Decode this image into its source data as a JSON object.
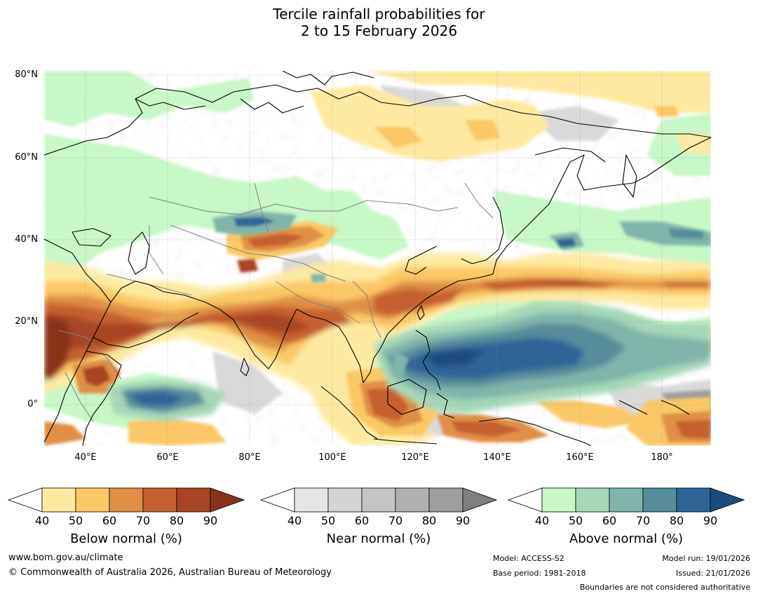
{
  "title_line1": "Tercile rainfall probabilities for",
  "title_line2": "2 to 15 February 2026",
  "lat_labels": [
    "80°N",
    "60°N",
    "40°N",
    "20°N",
    "0°"
  ],
  "lon_labels": [
    "40°E",
    "60°E",
    "80°E",
    "100°E",
    "120°E",
    "140°E",
    "160°E",
    "180°"
  ],
  "colorbars": [
    {
      "title": "Below normal (%)",
      "ticks": [
        "40",
        "50",
        "60",
        "70",
        "80",
        "90"
      ],
      "colors": [
        "#fdeaa0",
        "#fcc766",
        "#e08f45",
        "#c6602f",
        "#a84523",
        "#8a3219"
      ]
    },
    {
      "title": "Near normal (%)",
      "ticks": [
        "40",
        "50",
        "60",
        "70",
        "80",
        "90"
      ],
      "colors": [
        "#e5e5e5",
        "#d4d4d4",
        "#c4c4c4",
        "#b0b0b0",
        "#9e9e9e",
        "#7f7f7f"
      ]
    },
    {
      "title": "Above normal (%)",
      "ticks": [
        "40",
        "50",
        "60",
        "70",
        "80",
        "90"
      ],
      "colors": [
        "#c8f7c8",
        "#a6d7b8",
        "#7fb5aa",
        "#558d9a",
        "#2e6597",
        "#1a4c82"
      ]
    }
  ],
  "footer": {
    "website": "www.bom.gov.au/climate",
    "copyright": "© Commonwealth of Australia 2026, Australian Bureau of Meteorology",
    "model": "Model: ACCESS-S2",
    "base_period": "Base period: 1981-2018",
    "model_run": "Model run: 19/01/2026",
    "issued": "Issued: 21/01/2026",
    "disclaimer": "Boundaries are not considered authoritative"
  },
  "colors": {
    "below_light": "#fdeaa0",
    "below_dark": "#8a3219",
    "near_light": "#e5e5e5",
    "above_light": "#c8f7c8",
    "above_dark": "#1a4c82"
  }
}
